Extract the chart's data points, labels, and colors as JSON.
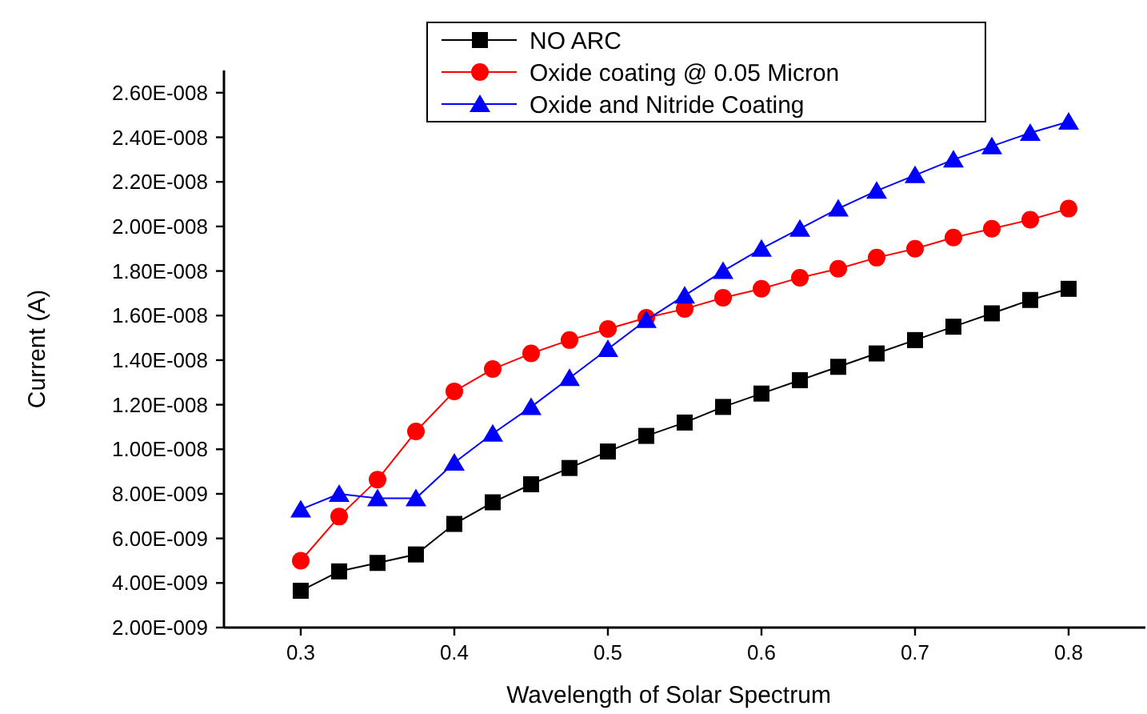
{
  "chart_data": {
    "type": "line",
    "xlabel": "Wavelength of Solar Spectrum",
    "ylabel": "Current (A)",
    "legend": "top",
    "grid": false,
    "line_style": "solid",
    "x": [
      0.3,
      0.325,
      0.35,
      0.375,
      0.4,
      0.425,
      0.45,
      0.475,
      0.5,
      0.525,
      0.55,
      0.575,
      0.6,
      0.625,
      0.65,
      0.675,
      0.7,
      0.725,
      0.75,
      0.775,
      0.8
    ],
    "xlim": [
      0.25,
      0.85
    ],
    "xticks": [
      0.3,
      0.4,
      0.5,
      0.6,
      0.7,
      0.8
    ],
    "ylim": [
      2e-09,
      2.7e-08
    ],
    "yticks": [
      {
        "value": 2e-09,
        "label": "2.00E-009"
      },
      {
        "value": 4e-09,
        "label": "4.00E-009"
      },
      {
        "value": 6e-09,
        "label": "6.00E-009"
      },
      {
        "value": 8e-09,
        "label": "8.00E-009"
      },
      {
        "value": 1e-08,
        "label": "1.00E-008"
      },
      {
        "value": 1.2e-08,
        "label": "1.20E-008"
      },
      {
        "value": 1.4e-08,
        "label": "1.40E-008"
      },
      {
        "value": 1.6e-08,
        "label": "1.60E-008"
      },
      {
        "value": 1.8e-08,
        "label": "1.80E-008"
      },
      {
        "value": 2e-08,
        "label": "2.00E-008"
      },
      {
        "value": 2.2e-08,
        "label": "2.20E-008"
      },
      {
        "value": 2.4e-08,
        "label": "2.40E-008"
      },
      {
        "value": 2.6e-08,
        "label": "2.60E-008"
      }
    ],
    "series": [
      {
        "name": "NO ARC",
        "color": "#000000",
        "marker": "square",
        "values": [
          3.65e-09,
          4.52e-09,
          4.9e-09,
          5.28e-09,
          6.65e-09,
          7.62e-09,
          8.43e-09,
          9.16e-09,
          9.9e-09,
          1.06e-08,
          1.12e-08,
          1.19e-08,
          1.25e-08,
          1.31e-08,
          1.37e-08,
          1.43e-08,
          1.49e-08,
          1.55e-08,
          1.61e-08,
          1.67e-08,
          1.72e-08
        ]
      },
      {
        "name": "Oxide coating @ 0.05 Micron",
        "color": "#ff0000",
        "marker": "circle",
        "values": [
          5e-09,
          6.98e-09,
          8.64e-09,
          1.08e-08,
          1.26e-08,
          1.36e-08,
          1.43e-08,
          1.49e-08,
          1.54e-08,
          1.59e-08,
          1.63e-08,
          1.68e-08,
          1.72e-08,
          1.77e-08,
          1.81e-08,
          1.86e-08,
          1.9e-08,
          1.95e-08,
          1.99e-08,
          2.03e-08,
          2.08e-08
        ]
      },
      {
        "name": "Oxide and Nitride Coating",
        "color": "#0000ff",
        "marker": "triangle",
        "values": [
          7.3e-09,
          8e-09,
          7.8e-09,
          7.8e-09,
          9.4e-09,
          1.07e-08,
          1.19e-08,
          1.32e-08,
          1.45e-08,
          1.58e-08,
          1.69e-08,
          1.8e-08,
          1.9e-08,
          1.99e-08,
          2.08e-08,
          2.16e-08,
          2.23e-08,
          2.3e-08,
          2.36e-08,
          2.42e-08,
          2.47e-08
        ]
      }
    ]
  }
}
